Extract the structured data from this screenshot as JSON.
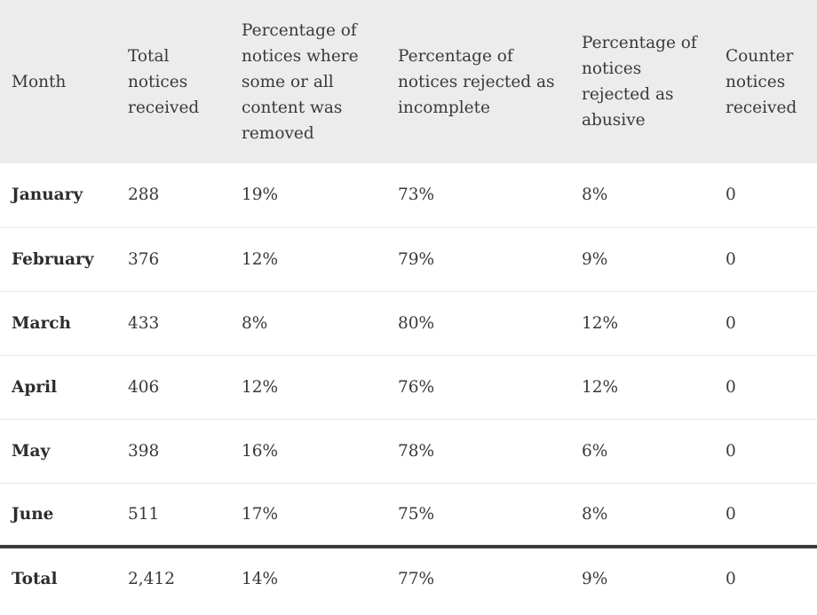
{
  "headers": {
    "month": "Month",
    "total": "Total notices received",
    "removed": "Percentage of notices where some or all content was removed",
    "incomplete": "Percentage of notices rejected as incomplete",
    "abusive": "Percentage of notices rejected as abusive",
    "counter": "Counter notices received"
  },
  "rows": [
    {
      "month": "January",
      "total": "288",
      "removed": "19%",
      "incomplete": "73%",
      "abusive": "8%",
      "counter": "0"
    },
    {
      "month": "February",
      "total": "376",
      "removed": "12%",
      "incomplete": "79%",
      "abusive": "9%",
      "counter": "0"
    },
    {
      "month": "March",
      "total": "433",
      "removed": "8%",
      "incomplete": "80%",
      "abusive": "12%",
      "counter": "0"
    },
    {
      "month": "April",
      "total": "406",
      "removed": "12%",
      "incomplete": "76%",
      "abusive": "12%",
      "counter": "0"
    },
    {
      "month": "May",
      "total": "398",
      "removed": "16%",
      "incomplete": "78%",
      "abusive": "6%",
      "counter": "0"
    },
    {
      "month": "June",
      "total": "511",
      "removed": "17%",
      "incomplete": "75%",
      "abusive": "8%",
      "counter": "0"
    }
  ],
  "totals": {
    "label": "Total",
    "total": "2,412",
    "removed": "14%",
    "incomplete": "77%",
    "abusive": "9%",
    "counter": "0"
  }
}
